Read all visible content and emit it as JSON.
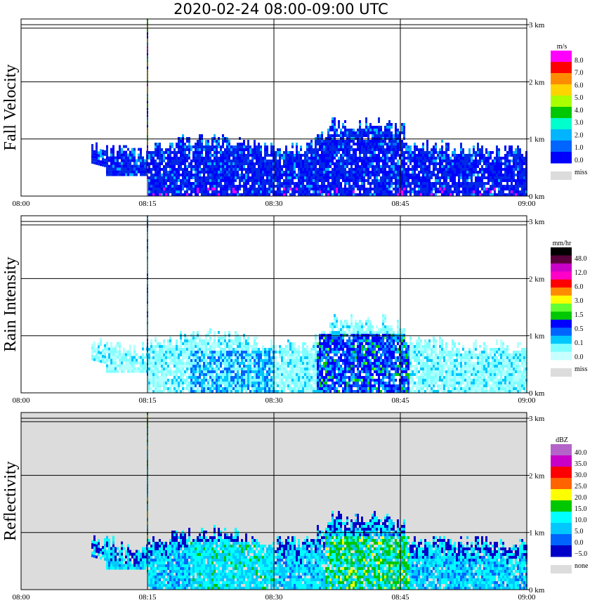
{
  "title": "2020-02-24   08:00-09:00 UTC",
  "x_axis": {
    "ticks": [
      "08:00",
      "08:15",
      "08:30",
      "08:45",
      "09:00"
    ],
    "tick_minutes": [
      0,
      15,
      30,
      45,
      60
    ]
  },
  "height_axis": {
    "ticks": [
      "0 km",
      "1 km",
      "2 km",
      "3 km"
    ],
    "tick_km": [
      0,
      1,
      2,
      3
    ],
    "max_km": 3.1
  },
  "panels": [
    {
      "id": "fall-velocity",
      "ylabel": "Fall Velocity",
      "background": "#ffffff",
      "legend": {
        "unit": "m/s",
        "labels": [
          "8.0",
          "7.0",
          "6.0",
          "5.0",
          "4.0",
          "3.0",
          "2.0",
          "1.0",
          "0.0"
        ],
        "colors": [
          "#ff00ff",
          "#ff0000",
          "#ff8c00",
          "#ffd400",
          "#aaff00",
          "#00c800",
          "#00ffcc",
          "#00b4ff",
          "#0064ff",
          "#0000ff"
        ],
        "miss_label": "miss",
        "miss_color": "#dcdcdc"
      }
    },
    {
      "id": "rain-intensity",
      "ylabel": "Rain Intensity",
      "background": "#ffffff",
      "legend": {
        "unit": "mm/hr",
        "labels": [
          "48.0",
          "12.0",
          "6.0",
          "3.0",
          "1.5",
          "0.5",
          "0.1",
          "0.0"
        ],
        "colors": [
          "#000000",
          "#5a003c",
          "#c800c8",
          "#ff00c8",
          "#ff0000",
          "#ff8c00",
          "#ffff00",
          "#64ff32",
          "#00c800",
          "#0000ff",
          "#0064ff",
          "#00c8ff",
          "#80ffff",
          "#c8ffff"
        ],
        "miss_label": "miss",
        "miss_color": "#dcdcdc"
      }
    },
    {
      "id": "reflectivity",
      "ylabel": "Reflectivity",
      "background": "#dcdcdc",
      "legend": {
        "unit": "dBZ",
        "labels": [
          "40.0",
          "35.0",
          "30.0",
          "25.0",
          "20.0",
          "15.0",
          "10.0",
          "5.0",
          "0.0",
          "−5.0"
        ],
        "colors": [
          "#b464c8",
          "#c800c8",
          "#ff0000",
          "#ff6400",
          "#ffff00",
          "#00c800",
          "#00ffff",
          "#00c8ff",
          "#0064ff",
          "#0000c8"
        ],
        "miss_label": "none",
        "miss_color": "#dcdcdc"
      }
    }
  ]
}
